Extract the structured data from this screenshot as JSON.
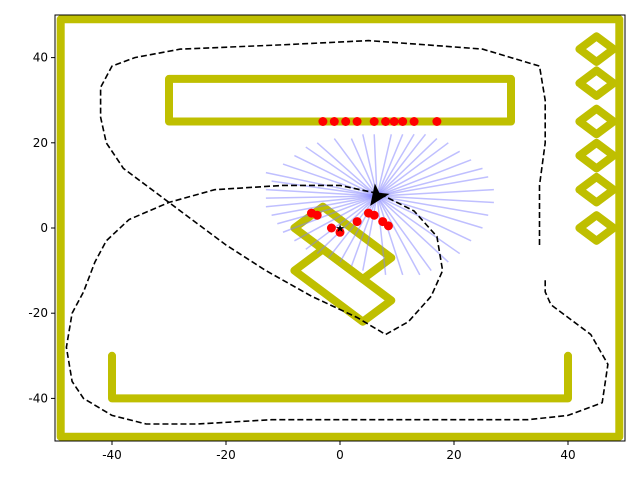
{
  "chart_data": {
    "type": "scatter",
    "title": "",
    "xlabel": "",
    "ylabel": "",
    "xlim": [
      -50,
      50
    ],
    "ylim": [
      -50,
      50
    ],
    "grid": false,
    "x_ticks": [
      -40,
      -20,
      0,
      20,
      40
    ],
    "y_ticks": [
      -40,
      -20,
      0,
      20,
      40
    ],
    "colors": {
      "wall": "#bfbf00",
      "path": "#000000",
      "hits": "#ff0000",
      "rays": "#8080ff",
      "robot": "#000000"
    },
    "walls": [
      {
        "name": "outer-border",
        "points": [
          [
            -49,
            -49
          ],
          [
            49,
            -49
          ],
          [
            49,
            49
          ],
          [
            -49,
            49
          ],
          [
            -49,
            -49
          ]
        ]
      },
      {
        "name": "top-bar",
        "points": [
          [
            -30,
            25
          ],
          [
            30,
            25
          ],
          [
            30,
            35
          ],
          [
            -30,
            35
          ],
          [
            -30,
            25
          ]
        ]
      },
      {
        "name": "bottom-u",
        "points": [
          [
            -40,
            -30
          ],
          [
            -40,
            -40
          ],
          [
            40,
            -40
          ],
          [
            40,
            -30
          ]
        ]
      },
      {
        "name": "x-shape-a",
        "points": [
          [
            -8,
            0
          ],
          [
            -3,
            5
          ],
          [
            9,
            -7
          ],
          [
            4,
            -12
          ],
          [
            -8,
            0
          ]
        ]
      },
      {
        "name": "x-shape-b",
        "points": [
          [
            -8,
            -10
          ],
          [
            -3,
            -5
          ],
          [
            9,
            -17
          ],
          [
            4,
            -22
          ],
          [
            -8,
            -10
          ]
        ]
      },
      {
        "name": "diamond-1",
        "points": [
          [
            42,
            42
          ],
          [
            45,
            45
          ],
          [
            48,
            42
          ],
          [
            45,
            39
          ],
          [
            42,
            42
          ]
        ]
      },
      {
        "name": "diamond-2",
        "points": [
          [
            42,
            34
          ],
          [
            45,
            37
          ],
          [
            48,
            34
          ],
          [
            45,
            31
          ],
          [
            42,
            34
          ]
        ]
      },
      {
        "name": "diamond-3",
        "points": [
          [
            42,
            25
          ],
          [
            45,
            28
          ],
          [
            48,
            25
          ],
          [
            45,
            22
          ],
          [
            42,
            25
          ]
        ]
      },
      {
        "name": "diamond-4",
        "points": [
          [
            42,
            17
          ],
          [
            45,
            20
          ],
          [
            48,
            17
          ],
          [
            45,
            14
          ],
          [
            42,
            17
          ]
        ]
      },
      {
        "name": "diamond-5",
        "points": [
          [
            42,
            9
          ],
          [
            45,
            12
          ],
          [
            48,
            9
          ],
          [
            45,
            6
          ],
          [
            42,
            9
          ]
        ]
      },
      {
        "name": "diamond-6",
        "points": [
          [
            42,
            0
          ],
          [
            45,
            3
          ],
          [
            48,
            0
          ],
          [
            45,
            -3
          ],
          [
            42,
            0
          ]
        ]
      }
    ],
    "path": [
      [
        35,
        -4
      ],
      [
        35,
        10
      ],
      [
        36,
        20
      ],
      [
        36,
        30
      ],
      [
        35,
        38
      ],
      [
        30,
        40
      ],
      [
        25,
        42
      ],
      [
        15,
        43
      ],
      [
        5,
        44
      ],
      [
        -10,
        43
      ],
      [
        -28,
        42
      ],
      [
        -36,
        40
      ],
      [
        -40,
        38
      ],
      [
        -42,
        33
      ],
      [
        -42,
        26
      ],
      [
        -41,
        20
      ],
      [
        -38,
        14
      ],
      [
        -32,
        8
      ],
      [
        -26,
        2
      ],
      [
        -20,
        -4
      ],
      [
        -13,
        -10
      ],
      [
        -5,
        -16
      ],
      [
        3,
        -21
      ],
      [
        8,
        -25
      ],
      [
        12,
        -22
      ],
      [
        16,
        -16
      ],
      [
        18,
        -10
      ],
      [
        17,
        -2
      ],
      [
        13,
        4
      ],
      [
        7,
        8
      ],
      [
        0,
        10
      ],
      [
        -10,
        10
      ],
      [
        -22,
        9
      ],
      [
        -30,
        6
      ],
      [
        -37,
        2
      ],
      [
        -41,
        -3
      ],
      [
        -43,
        -8
      ],
      [
        -45,
        -15
      ],
      [
        -47,
        -20
      ],
      [
        -48,
        -28
      ],
      [
        -47,
        -36
      ],
      [
        -45,
        -40
      ],
      [
        -40,
        -44
      ],
      [
        -34,
        -46
      ],
      [
        -25,
        -46
      ],
      [
        -12,
        -45
      ],
      [
        5,
        -45
      ],
      [
        25,
        -45
      ],
      [
        33,
        -45
      ],
      [
        40,
        -44
      ],
      [
        46,
        -41
      ],
      [
        47,
        -32
      ],
      [
        44,
        -25
      ],
      [
        41,
        -22
      ],
      [
        37,
        -18
      ],
      [
        36,
        -15
      ],
      [
        36,
        -12
      ]
    ],
    "robot": {
      "x": 6.5,
      "y": 7.5,
      "heading_deg": 235
    },
    "start_marker": {
      "x": 0,
      "y": 0
    },
    "rays": [
      [
        -13,
        13
      ],
      [
        -10,
        15
      ],
      [
        -8,
        17
      ],
      [
        -6,
        19
      ],
      [
        -4,
        20
      ],
      [
        -1,
        21
      ],
      [
        2,
        21
      ],
      [
        4,
        22
      ],
      [
        6,
        22
      ],
      [
        9,
        22
      ],
      [
        11,
        22
      ],
      [
        13,
        22
      ],
      [
        15,
        22
      ],
      [
        17,
        21
      ],
      [
        19,
        20
      ],
      [
        21,
        18
      ],
      [
        23,
        16
      ],
      [
        25,
        14
      ],
      [
        26,
        12
      ],
      [
        27,
        9
      ],
      [
        27,
        6
      ],
      [
        26,
        3
      ],
      [
        25,
        0
      ],
      [
        23,
        -3
      ],
      [
        21,
        -6
      ],
      [
        19,
        -8
      ],
      [
        16,
        -10
      ],
      [
        14,
        -11
      ],
      [
        11,
        -11
      ],
      [
        -13,
        9
      ],
      [
        -13,
        7
      ],
      [
        -13,
        5
      ],
      [
        -12,
        3
      ],
      [
        -11,
        1
      ],
      [
        -10,
        -1
      ],
      [
        -8,
        -3
      ],
      [
        -6,
        -5
      ],
      [
        -4,
        -6
      ],
      [
        -2,
        -7
      ],
      [
        0,
        -8
      ],
      [
        2,
        -9
      ],
      [
        4,
        -10
      ],
      [
        8,
        -11
      ],
      [
        -12,
        11
      ]
    ],
    "hits": [
      {
        "x": -3,
        "y": 25
      },
      {
        "x": -1,
        "y": 25
      },
      {
        "x": 1,
        "y": 25
      },
      {
        "x": 3,
        "y": 25
      },
      {
        "x": 6,
        "y": 25
      },
      {
        "x": 8,
        "y": 25
      },
      {
        "x": 9.5,
        "y": 25
      },
      {
        "x": 11,
        "y": 25
      },
      {
        "x": 13,
        "y": 25
      },
      {
        "x": 17,
        "y": 25
      },
      {
        "x": -5,
        "y": 3.5
      },
      {
        "x": -4,
        "y": 3
      },
      {
        "x": -1.5,
        "y": 0
      },
      {
        "x": 0,
        "y": -1
      },
      {
        "x": 3,
        "y": 1.5
      },
      {
        "x": 5,
        "y": 3.5
      },
      {
        "x": 6,
        "y": 3
      },
      {
        "x": 7.5,
        "y": 1.5
      },
      {
        "x": 8.5,
        "y": 0.5
      }
    ]
  }
}
